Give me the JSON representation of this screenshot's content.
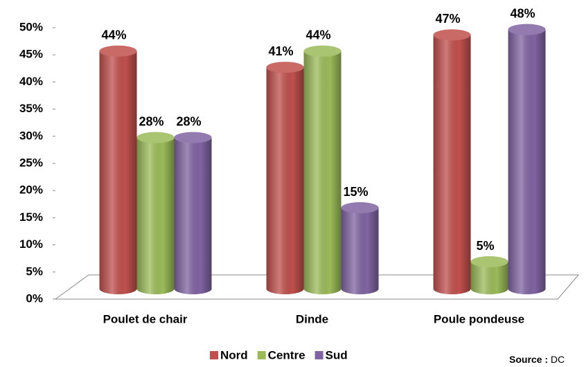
{
  "chart_data": {
    "type": "bar3d",
    "categories": [
      "Poulet de chair",
      "Dinde",
      "Poule pondeuse"
    ],
    "series": [
      {
        "name": "Nord",
        "color": "#c0504d",
        "values": [
          44,
          41,
          47
        ],
        "value_labels": [
          "44%",
          "41%",
          "47%"
        ]
      },
      {
        "name": "Centre",
        "color": "#9bbb59",
        "values": [
          28,
          44,
          5
        ],
        "value_labels": [
          "28%",
          "44%",
          "5%"
        ]
      },
      {
        "name": "Sud",
        "color": "#8064a2",
        "values": [
          28,
          15,
          48
        ],
        "value_labels": [
          "28%",
          "15%",
          "48%"
        ]
      }
    ],
    "ylim": [
      0,
      50
    ],
    "yticks": [
      {
        "value": 0,
        "label": "0%"
      },
      {
        "value": 5,
        "label": "5%"
      },
      {
        "value": 10,
        "label": "10%"
      },
      {
        "value": 15,
        "label": "15%"
      },
      {
        "value": 20,
        "label": "20%"
      },
      {
        "value": 25,
        "label": "25%"
      },
      {
        "value": 30,
        "label": "30%"
      },
      {
        "value": 35,
        "label": "35%"
      },
      {
        "value": 40,
        "label": "40%"
      },
      {
        "value": 45,
        "label": "45%"
      },
      {
        "value": 50,
        "label": "50%"
      }
    ],
    "grid": false,
    "legend": "bottom",
    "source": {
      "label": "Source :",
      "text": "DC"
    }
  }
}
